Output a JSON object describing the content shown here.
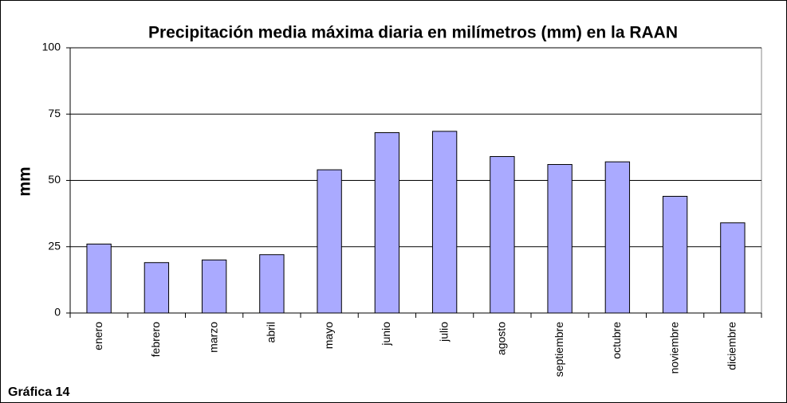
{
  "chart_data": {
    "type": "bar",
    "title": "Precipitación media máxima diaria en milímetros (mm)  en la RAAN",
    "y_label": "mm",
    "footnote": "Gráfica 14",
    "categories": [
      "enero",
      "febrero",
      "marzo",
      "abril",
      "mayo",
      "junio",
      "julio",
      "agosto",
      "septiembre",
      "octubre",
      "noviembre",
      "diciembre"
    ],
    "values": [
      26,
      19,
      20,
      22,
      54,
      68,
      68.5,
      59,
      56,
      57,
      44,
      34
    ],
    "color": "#aaaaff",
    "ylim": [
      0,
      100
    ],
    "yticks": [
      0,
      25,
      50,
      75,
      100
    ],
    "grid": true
  }
}
